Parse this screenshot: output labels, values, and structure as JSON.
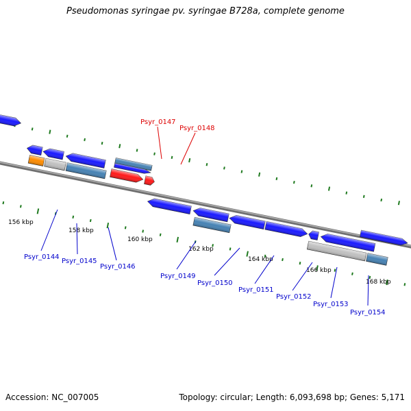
{
  "title": "Pseudomonas syringae pv. syringae B728a, complete genome",
  "footer": {
    "accession": "Accession: NC_007005",
    "stats": "Topology: circular; Length: 6,093,698 bp; Genes: 5,171"
  },
  "colors": {
    "backbone": "#888888",
    "tick": "#1f7a1f",
    "gene_blue": "#1a1aff",
    "gene_red": "#ff1a1a",
    "gene_orange": "#ff8c00",
    "gene_grey": "#c0c0c0",
    "gene_steel": "#4682b4",
    "label_blue": "#0000cc",
    "label_red": "#dd0000"
  },
  "scale_labels": [
    "156 kbp",
    "158 kbp",
    "160 kbp",
    "162 kbp",
    "164 kbp",
    "166 kbp",
    "168 kbp"
  ],
  "gene_labels": [
    {
      "name": "Psyr_0144",
      "color": "blue"
    },
    {
      "name": "Psyr_0145",
      "color": "blue"
    },
    {
      "name": "Psyr_0146",
      "color": "blue"
    },
    {
      "name": "Psyr_0147",
      "color": "red"
    },
    {
      "name": "Psyr_0148",
      "color": "red"
    },
    {
      "name": "Psyr_0149",
      "color": "blue"
    },
    {
      "name": "Psyr_0150",
      "color": "blue"
    },
    {
      "name": "Psyr_0151",
      "color": "blue"
    },
    {
      "name": "Psyr_0152",
      "color": "blue"
    },
    {
      "name": "Psyr_0153",
      "color": "blue"
    },
    {
      "name": "Psyr_0154",
      "color": "blue"
    }
  ]
}
